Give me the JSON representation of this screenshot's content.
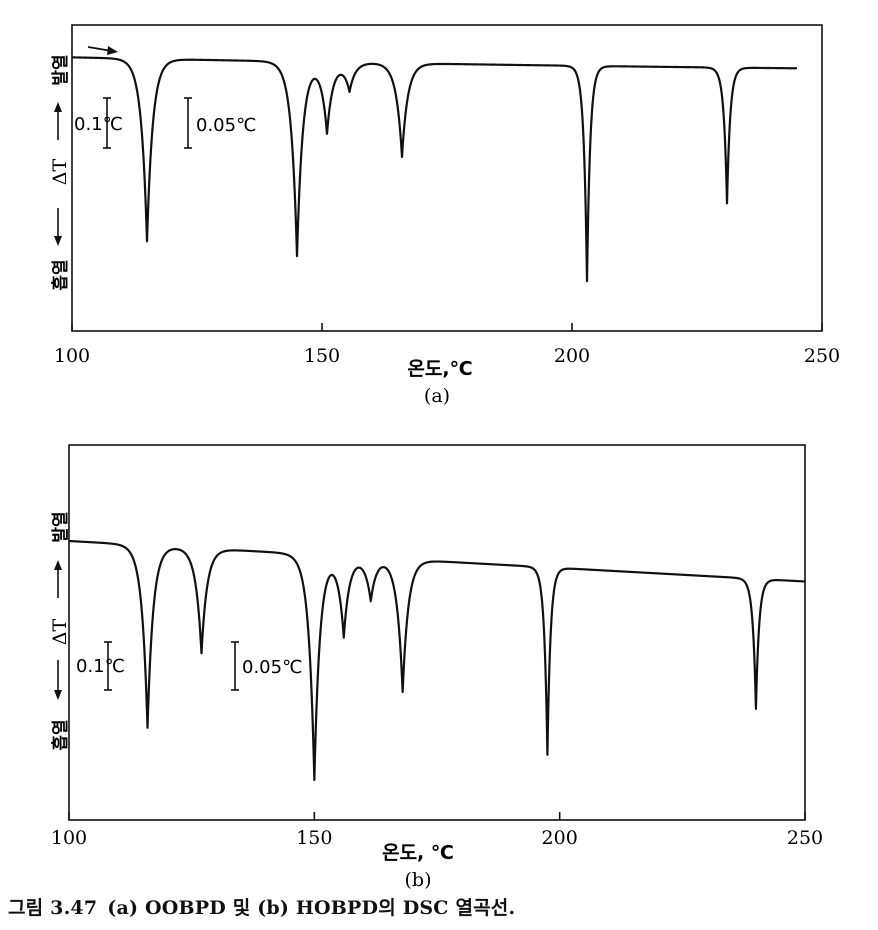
{
  "caption": {
    "label": "그림 3.47",
    "text": "(a) OOBPD 및 (b) HOBPD의 DSC 열곡선."
  },
  "chart_data": [
    {
      "type": "line",
      "panel_label": "(a)",
      "xlabel": "온도,℃",
      "ylabel": "ΔT",
      "y_up_label": "발열",
      "y_down_label": "흡열",
      "xlim": [
        100,
        250
      ],
      "xticks": [
        "100",
        "150",
        "200",
        "250"
      ],
      "scale_bars": [
        "0.1℃",
        "0.05℃"
      ],
      "grid": false,
      "start_temperature": 100,
      "end_temperature": 245,
      "peaks": [
        {
          "temperature": 115,
          "relative_depth": 0.78
        },
        {
          "temperature": 145,
          "relative_depth": 0.83
        },
        {
          "temperature": 151,
          "relative_depth": 0.3
        },
        {
          "temperature": 155.5,
          "relative_depth": 0.12
        },
        {
          "temperature": 166,
          "relative_depth": 0.4
        },
        {
          "temperature": 203,
          "relative_depth": 0.92
        },
        {
          "temperature": 231,
          "relative_depth": 0.58
        }
      ]
    },
    {
      "type": "line",
      "panel_label": "(b)",
      "xlabel": "온도, ℃",
      "ylabel": "ΔT",
      "y_up_label": "발열",
      "y_down_label": "흡열",
      "xlim": [
        100,
        250
      ],
      "xticks": [
        "100",
        "150",
        "200",
        "250"
      ],
      "scale_bars": [
        "0.1℃",
        "0.05℃"
      ],
      "grid": false,
      "start_temperature": 100,
      "end_temperature": 250,
      "peaks": [
        {
          "temperature": 116,
          "relative_depth": 0.73
        },
        {
          "temperature": 127,
          "relative_depth": 0.42
        },
        {
          "temperature": 150,
          "relative_depth": 0.9
        },
        {
          "temperature": 156,
          "relative_depth": 0.32
        },
        {
          "temperature": 161.5,
          "relative_depth": 0.17
        },
        {
          "temperature": 168,
          "relative_depth": 0.53
        },
        {
          "temperature": 197.5,
          "relative_depth": 0.75
        },
        {
          "temperature": 240,
          "relative_depth": 0.52
        }
      ]
    }
  ]
}
